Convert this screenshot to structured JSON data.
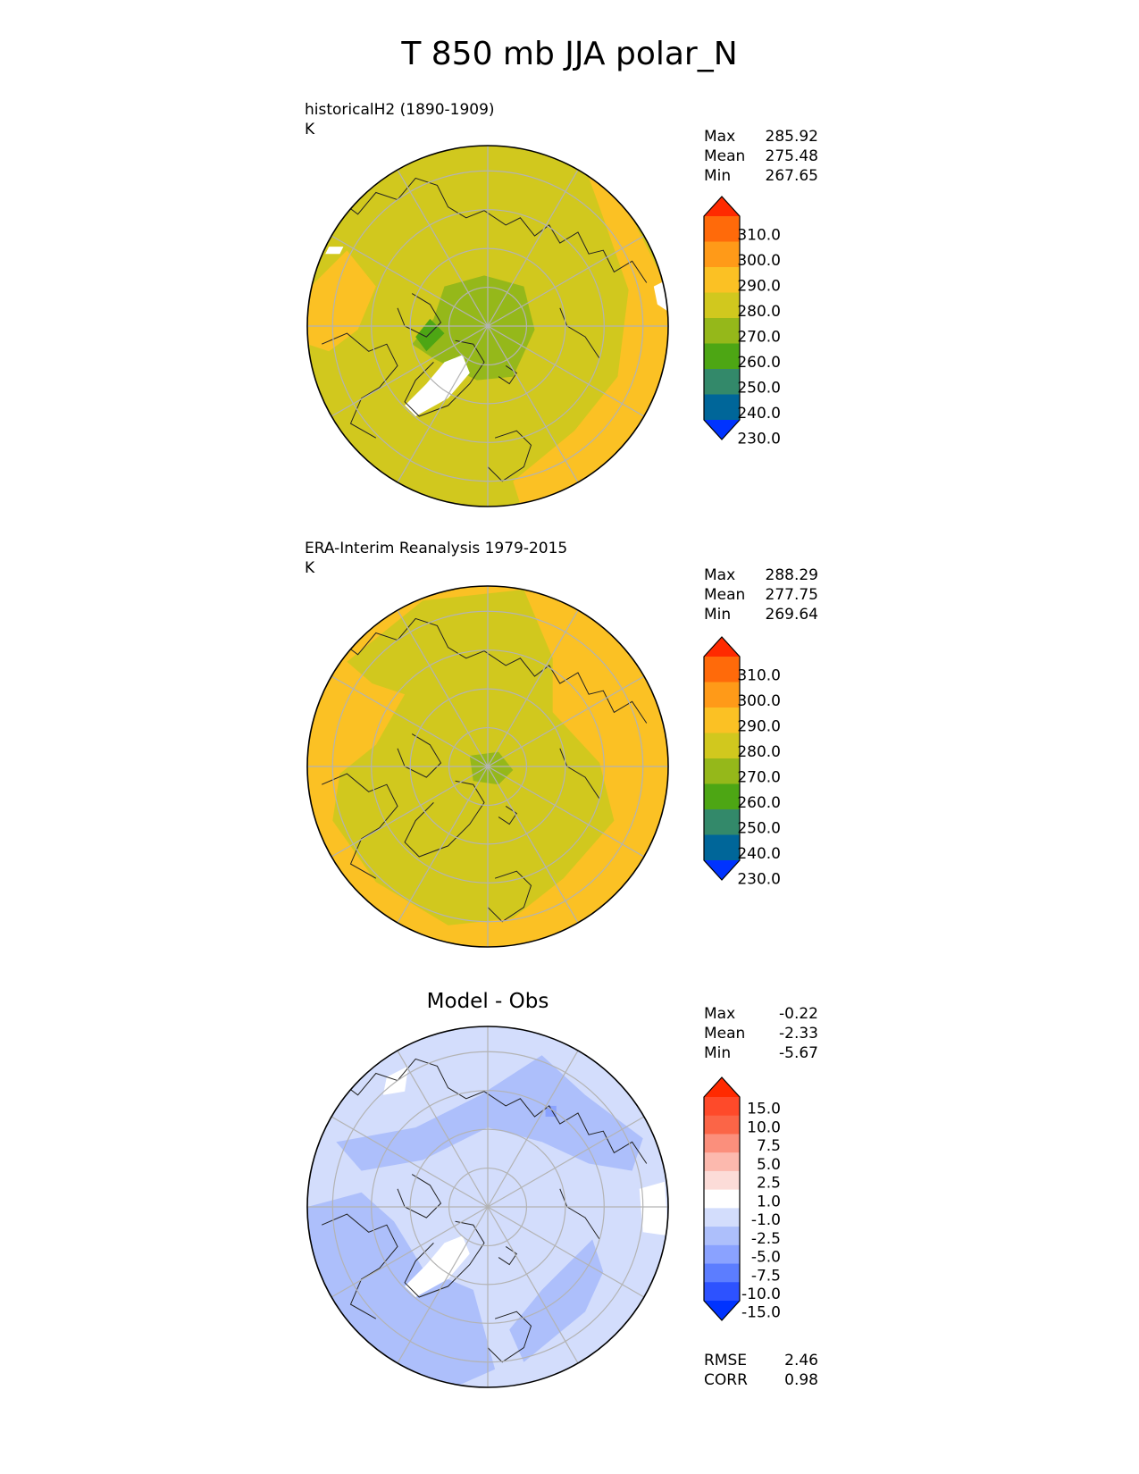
{
  "title": "T 850 mb JJA polar_N",
  "panels": [
    {
      "id": "model",
      "label": "historicalH2 (1890-1909)",
      "units": "K",
      "stats": [
        [
          "Max",
          "285.92"
        ],
        [
          "Mean",
          "275.48"
        ],
        [
          "Min",
          "267.65"
        ]
      ]
    },
    {
      "id": "obs",
      "label": "ERA-Interim Reanalysis 1979-2015",
      "units": "K",
      "stats": [
        [
          "Max",
          "288.29"
        ],
        [
          "Mean",
          "277.75"
        ],
        [
          "Min",
          "269.64"
        ]
      ]
    },
    {
      "id": "diff",
      "title": "Model - Obs",
      "stats": [
        [
          "Max",
          "-0.22"
        ],
        [
          "Mean",
          "-2.33"
        ],
        [
          "Min",
          "-5.67"
        ]
      ],
      "metrics": [
        [
          "RMSE",
          "2.46"
        ],
        [
          "CORR",
          "0.98"
        ]
      ]
    }
  ],
  "chart_data": [
    {
      "type": "heatmap",
      "projection": "north-polar-stereographic",
      "title": "historicalH2 (1890-1909)",
      "units": "K",
      "colorbar": {
        "levels": [
          "230.0",
          "240.0",
          "250.0",
          "260.0",
          "270.0",
          "280.0",
          "290.0",
          "300.0",
          "310.0"
        ],
        "colors": [
          "#0033ff",
          "#006699",
          "#33896a",
          "#4da614",
          "#95b81a",
          "#d1c81e",
          "#fbc124",
          "#ff9a18",
          "#ff6a0a",
          "#ff2a00"
        ],
        "extend": "both"
      },
      "summary": {
        "max": 285.92,
        "mean": 275.48,
        "min": 267.65
      }
    },
    {
      "type": "heatmap",
      "projection": "north-polar-stereographic",
      "title": "ERA-Interim Reanalysis 1979-2015",
      "units": "K",
      "colorbar": {
        "levels": [
          "230.0",
          "240.0",
          "250.0",
          "260.0",
          "270.0",
          "280.0",
          "290.0",
          "300.0",
          "310.0"
        ],
        "colors": [
          "#0033ff",
          "#006699",
          "#33896a",
          "#4da614",
          "#95b81a",
          "#d1c81e",
          "#fbc124",
          "#ff9a18",
          "#ff6a0a",
          "#ff2a00"
        ],
        "extend": "both"
      },
      "summary": {
        "max": 288.29,
        "mean": 277.75,
        "min": 269.64
      }
    },
    {
      "type": "heatmap",
      "projection": "north-polar-stereographic",
      "title": "Model - Obs",
      "colorbar": {
        "levels": [
          "-15.0",
          "-10.0",
          "-7.5",
          "-5.0",
          "-2.5",
          "-1.0",
          "1.0",
          "2.5",
          "5.0",
          "7.5",
          "10.0",
          "15.0"
        ],
        "colors": [
          "#0033ff",
          "#2d52ff",
          "#5c7dff",
          "#8aa2ff",
          "#adbffb",
          "#d3ddfc",
          "#ffffff",
          "#fcdcd8",
          "#fcb9ae",
          "#fb8f7c",
          "#fb6547",
          "#fe4a2a",
          "#ff2a00"
        ],
        "extend": "both"
      },
      "summary": {
        "max": -0.22,
        "mean": -2.33,
        "min": -5.67
      },
      "metrics": {
        "rmse": 2.46,
        "corr": 0.98
      }
    }
  ]
}
